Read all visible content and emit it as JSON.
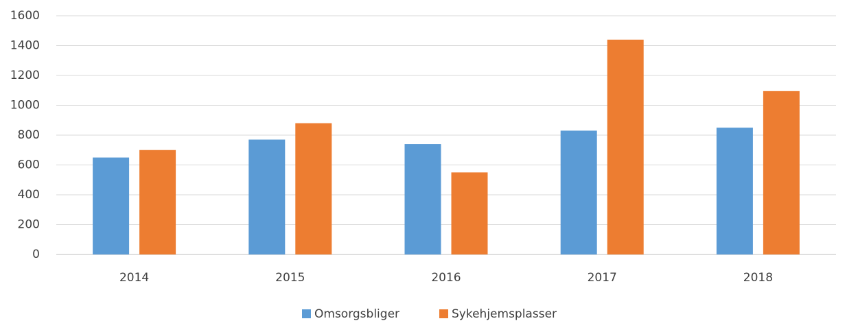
{
  "chart_data": {
    "type": "bar",
    "categories": [
      "2014",
      "2015",
      "2016",
      "2017",
      "2018"
    ],
    "series": [
      {
        "name": "Omsorgsbliger",
        "color": "#5b9bd5",
        "values": [
          650,
          770,
          740,
          830,
          850
        ]
      },
      {
        "name": "Sykehjemsplasser",
        "color": "#ed7d31",
        "values": [
          700,
          880,
          550,
          1440,
          1095
        ]
      }
    ],
    "ylim": [
      0,
      1600
    ],
    "yticks": [
      0,
      200,
      400,
      600,
      800,
      1000,
      1200,
      1400,
      1600
    ],
    "grid": true,
    "legend": "bottom"
  }
}
